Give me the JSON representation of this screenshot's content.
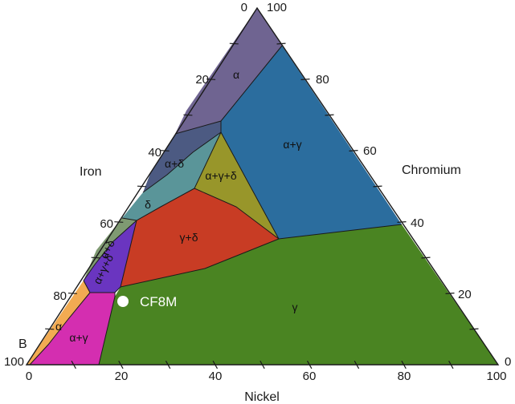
{
  "axes": {
    "iron": {
      "title": "Iron",
      "ticks": [
        "0",
        "20",
        "40",
        "60",
        "80",
        "100"
      ]
    },
    "chromium": {
      "title": "Chromium",
      "ticks": [
        "100",
        "80",
        "60",
        "40",
        "20",
        "0"
      ]
    },
    "nickel": {
      "title": "Nickel",
      "ticks": [
        "0",
        "20",
        "40",
        "60",
        "80",
        "100"
      ]
    }
  },
  "corner_label": "B",
  "regions": [
    {
      "id": "alpha",
      "label": "α",
      "color": "#6f6491"
    },
    {
      "id": "alpha-gamma",
      "label": "α+γ",
      "color": "#2b6d9e"
    },
    {
      "id": "alpha-delta",
      "label": "α+δ",
      "color": "#4c5a82"
    },
    {
      "id": "alpha-gamma-delta",
      "label": "α+γ+δ",
      "color": "#98962a"
    },
    {
      "id": "delta",
      "label": "δ",
      "color": "#5a9599"
    },
    {
      "id": "gamma-delta",
      "label": "γ+δ",
      "color": "#c83c24"
    },
    {
      "id": "gamma",
      "label": "γ",
      "color": "#4a8422"
    },
    {
      "id": "alpha-delta-lower",
      "label": "α+δ",
      "color": "#7f9a72"
    },
    {
      "id": "alpha-gamma-delta-lower",
      "label": "α+γ+δ",
      "color": "#6a35c0"
    },
    {
      "id": "alpha-gamma-lower",
      "label": "α+γ",
      "color": "#d42eb0"
    },
    {
      "id": "alpha-lower",
      "label": "α",
      "color": "#f2ab52"
    }
  ],
  "marker": {
    "label": "CF8M",
    "color": "#ffffff"
  }
}
